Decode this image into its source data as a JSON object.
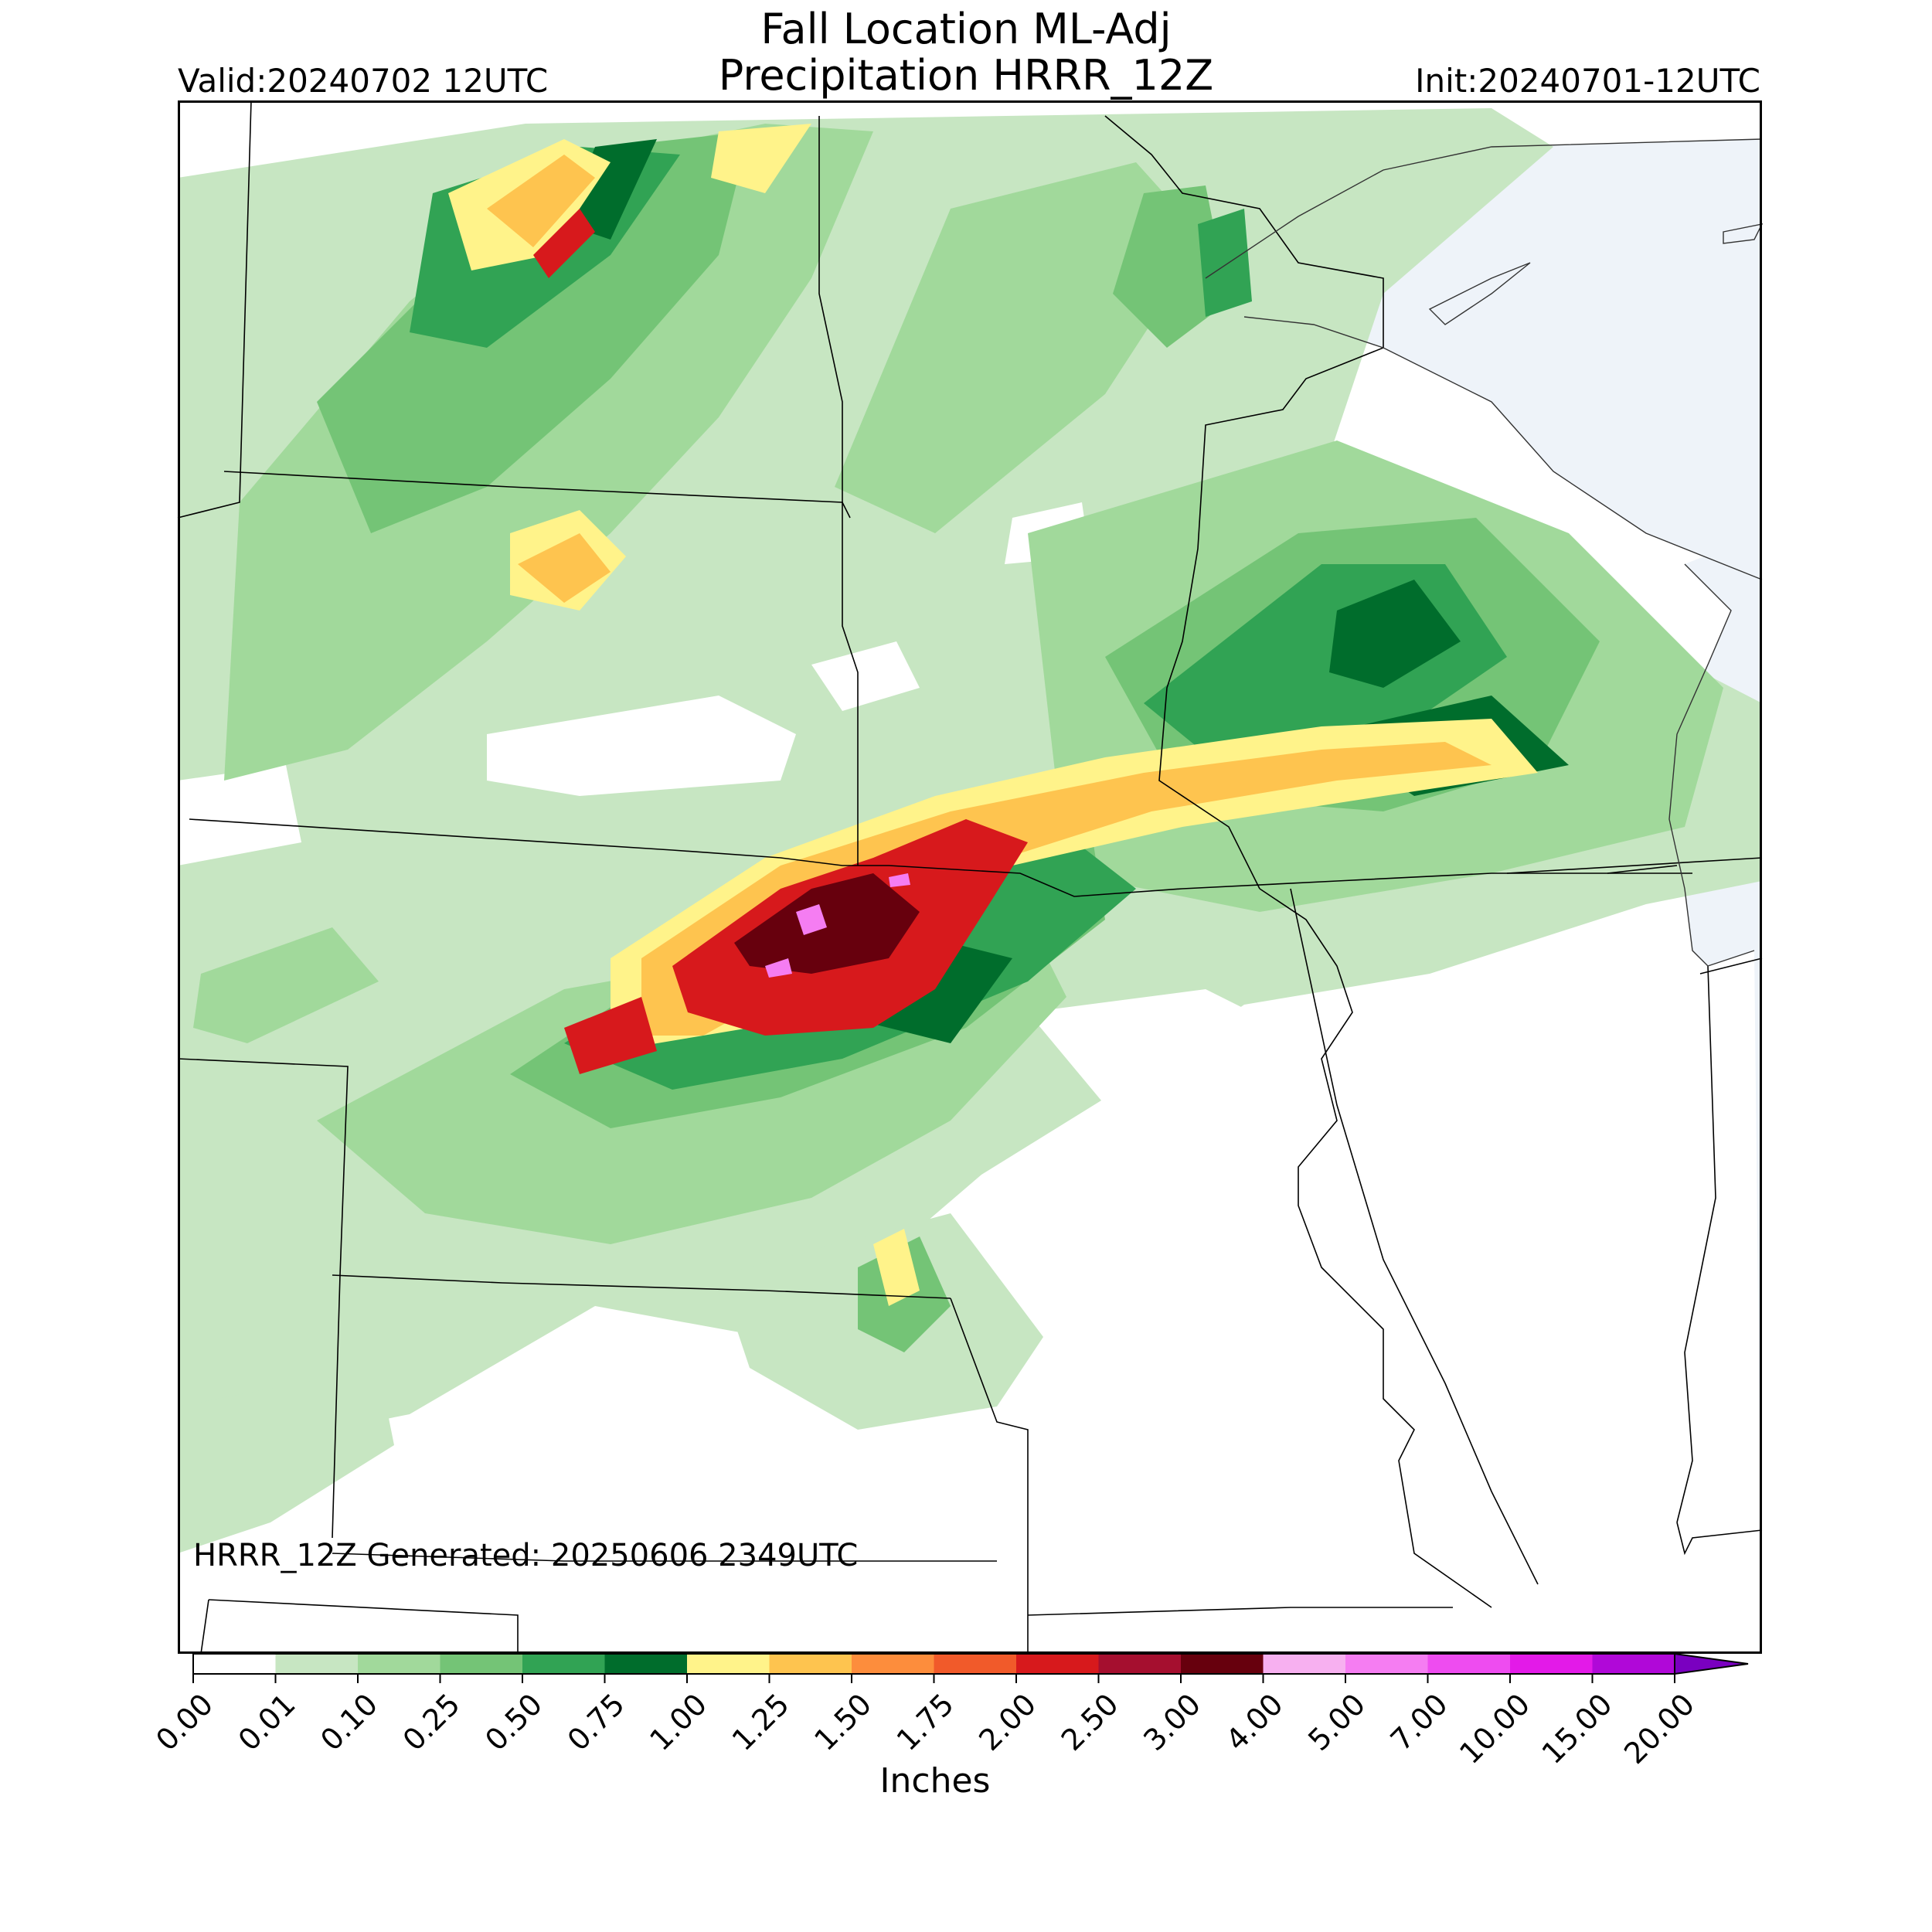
{
  "title": {
    "line1": "Fall Location ML-Adj",
    "line2": "Precipitation HRRR_12Z"
  },
  "valid": "Valid:20240702 12UTC",
  "init": "Init:20240701-12UTC",
  "footer": "HRRR_12Z Generated: 20250606 2349UTC",
  "colorbar": {
    "label": "Inches",
    "ticks": [
      "0.00",
      "0.01",
      "0.10",
      "0.25",
      "0.50",
      "0.75",
      "1.00",
      "1.25",
      "1.50",
      "1.75",
      "2.00",
      "2.50",
      "3.00",
      "4.00",
      "5.00",
      "7.00",
      "10.00",
      "15.00",
      "20.00"
    ],
    "colors": [
      "#ffffff",
      "#c7e6c2",
      "#a1d99b",
      "#74c476",
      "#31a354",
      "#006d2c",
      "#fff38a",
      "#fec44f",
      "#fd8d3c",
      "#f15a2a",
      "#d7191c",
      "#a50f2f",
      "#67000d",
      "#f7b0f0",
      "#f57df2",
      "#ee4cf0",
      "#e31ae8",
      "#b008d8"
    ],
    "extend_color": "#7a00c0"
  },
  "map_colors": {
    "land": "#ffffff",
    "lake": "#eef3f9",
    "border": "#000000",
    "coast": "#333333"
  }
}
